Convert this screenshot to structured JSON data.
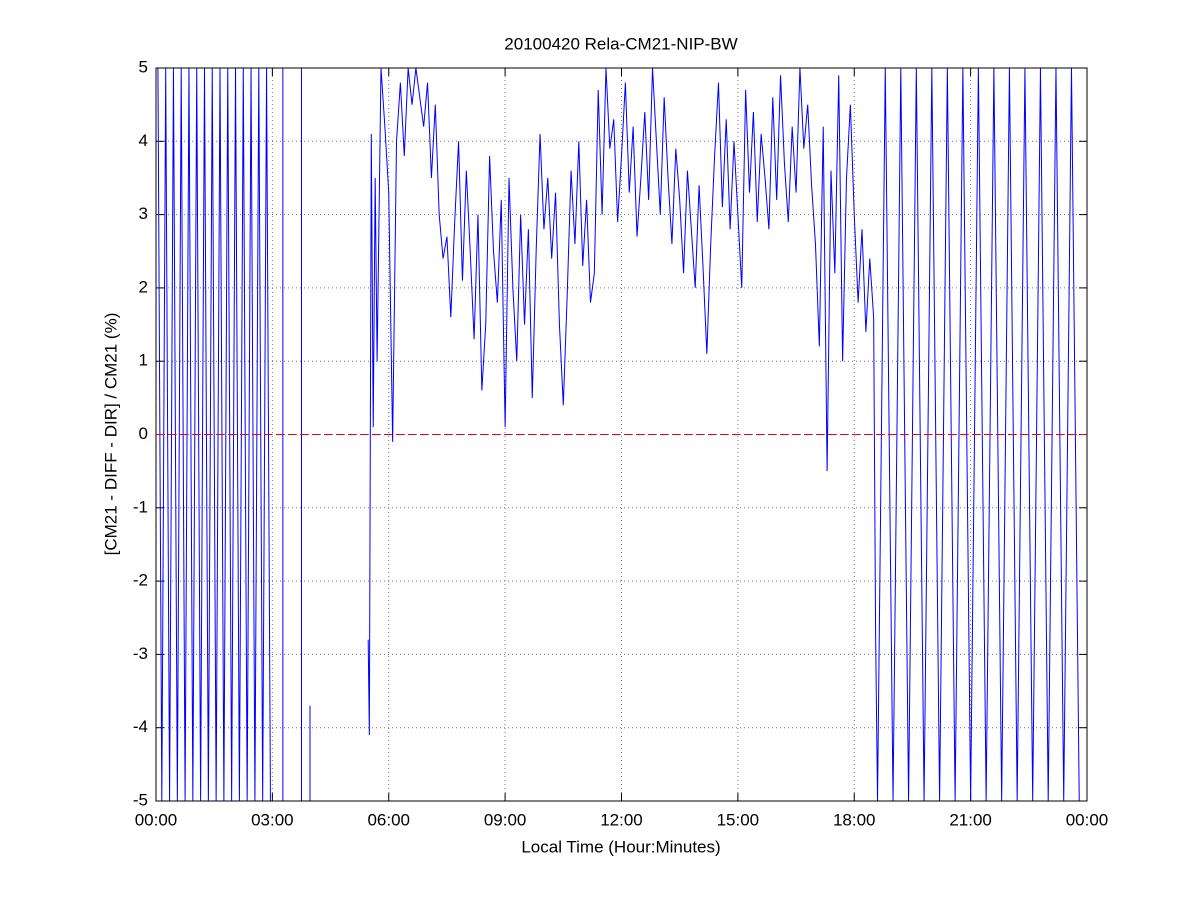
{
  "chart_data": {
    "type": "line",
    "title": "20100420 Rela-CM21-NIP-BW",
    "xlabel": "Local Time (Hour:Minutes)",
    "ylabel": "[CM21 - DIFF - DIR] / CM21 (%)",
    "xlim": [
      0,
      24
    ],
    "ylim": [
      -5,
      5
    ],
    "xticks": [
      {
        "value": 0,
        "label": "00:00"
      },
      {
        "value": 3,
        "label": "03:00"
      },
      {
        "value": 6,
        "label": "06:00"
      },
      {
        "value": 9,
        "label": "09:00"
      },
      {
        "value": 12,
        "label": "12:00"
      },
      {
        "value": 15,
        "label": "15:00"
      },
      {
        "value": 18,
        "label": "18:00"
      },
      {
        "value": 21,
        "label": "21:00"
      },
      {
        "value": 24,
        "label": "00:00"
      }
    ],
    "yticks": [
      -5,
      -4,
      -3,
      -2,
      -1,
      0,
      1,
      2,
      3,
      4,
      5
    ],
    "grid": true,
    "hlines": [
      {
        "y": 0,
        "color": "#ff0000"
      }
    ],
    "x": [
      0.05,
      0.15,
      0.25,
      0.35,
      0.45,
      0.55,
      0.65,
      0.75,
      0.85,
      0.95,
      1.05,
      1.15,
      1.25,
      1.35,
      1.45,
      1.55,
      1.65,
      1.75,
      1.85,
      1.95,
      2.05,
      2.15,
      2.25,
      2.35,
      2.45,
      2.55,
      2.65,
      2.75,
      2.85,
      2.95,
      3.1,
      3.27,
      3.27,
      3.5,
      3.75,
      3.75,
      3.85,
      3.97,
      3.97,
      4.5,
      5.47,
      5.5,
      5.55,
      5.6,
      5.65,
      5.7,
      5.8,
      5.9,
      6.0,
      6.1,
      6.2,
      6.3,
      6.4,
      6.5,
      6.6,
      6.7,
      6.8,
      6.9,
      7.0,
      7.1,
      7.2,
      7.3,
      7.4,
      7.5,
      7.6,
      7.7,
      7.8,
      7.9,
      8.0,
      8.1,
      8.2,
      8.3,
      8.4,
      8.5,
      8.6,
      8.7,
      8.8,
      8.9,
      9.0,
      9.1,
      9.2,
      9.3,
      9.4,
      9.5,
      9.6,
      9.7,
      9.8,
      9.9,
      10.0,
      10.1,
      10.2,
      10.3,
      10.4,
      10.5,
      10.6,
      10.7,
      10.8,
      10.9,
      11.0,
      11.1,
      11.2,
      11.3,
      11.4,
      11.5,
      11.6,
      11.7,
      11.8,
      11.9,
      12.0,
      12.1,
      12.2,
      12.3,
      12.4,
      12.5,
      12.6,
      12.7,
      12.8,
      12.9,
      13.0,
      13.1,
      13.2,
      13.3,
      13.4,
      13.5,
      13.6,
      13.7,
      13.8,
      13.9,
      14.0,
      14.1,
      14.2,
      14.3,
      14.4,
      14.5,
      14.6,
      14.7,
      14.8,
      14.9,
      15.0,
      15.1,
      15.2,
      15.3,
      15.4,
      15.5,
      15.6,
      15.7,
      15.8,
      15.9,
      16.0,
      16.1,
      16.2,
      16.3,
      16.4,
      16.5,
      16.6,
      16.7,
      16.8,
      16.9,
      17.0,
      17.1,
      17.2,
      17.3,
      17.4,
      17.5,
      17.6,
      17.7,
      17.8,
      17.9,
      18.0,
      18.1,
      18.2,
      18.3,
      18.4,
      18.5,
      18.55,
      18.6,
      18.8,
      19.0,
      19.2,
      19.4,
      19.6,
      19.8,
      20.0,
      20.2,
      20.4,
      20.6,
      20.8,
      21.0,
      21.2,
      21.4,
      21.6,
      21.8,
      22.0,
      22.2,
      22.4,
      22.6,
      22.8,
      23.0,
      23.2,
      23.4,
      23.6,
      23.8
    ],
    "series": [
      {
        "name": "CM21",
        "color": "#0000ff",
        "values": [
          5,
          -5,
          5,
          -5,
          5,
          -5,
          5,
          -5,
          5,
          -5,
          5,
          -5,
          5,
          -5,
          5,
          -5,
          5,
          -5,
          5,
          -5,
          5,
          -5,
          5,
          -5,
          5,
          -5,
          5,
          -5,
          5,
          -5,
          null,
          5,
          -5,
          null,
          5,
          -5,
          null,
          -3.7,
          -5,
          null,
          -2.8,
          -4.1,
          4.1,
          0.1,
          3.5,
          1.0,
          5,
          4.2,
          3.3,
          -0.1,
          4.0,
          4.8,
          3.8,
          5,
          4.5,
          5,
          4.6,
          4.2,
          4.8,
          3.5,
          4.5,
          3.0,
          2.4,
          2.7,
          1.6,
          2.9,
          4.0,
          2.1,
          3.6,
          2.5,
          1.3,
          3.0,
          0.6,
          1.5,
          3.8,
          2.5,
          1.8,
          3.2,
          0.1,
          3.5,
          2.0,
          1.0,
          3.0,
          1.5,
          2.8,
          0.5,
          2.5,
          4.1,
          2.8,
          3.5,
          2.4,
          3.3,
          1.5,
          0.4,
          1.9,
          3.6,
          2.6,
          4.0,
          2.3,
          3.2,
          1.8,
          2.2,
          4.7,
          3.0,
          5,
          3.9,
          4.3,
          2.9,
          3.8,
          4.8,
          3.3,
          4.2,
          2.7,
          3.5,
          4.4,
          3.2,
          5,
          4.0,
          3.0,
          4.6,
          3.5,
          2.6,
          3.9,
          3.2,
          2.2,
          3.6,
          2.8,
          2.0,
          3.4,
          2.3,
          1.1,
          2.6,
          3.8,
          4.8,
          3.1,
          4.3,
          2.8,
          4.0,
          3.0,
          2.0,
          4.7,
          3.3,
          4.4,
          2.9,
          4.1,
          3.5,
          2.8,
          4.6,
          3.2,
          4.9,
          3.7,
          2.9,
          4.2,
          3.3,
          5,
          3.9,
          4.5,
          3.4,
          2.6,
          1.2,
          4.2,
          -0.5,
          3.6,
          2.2,
          4.9,
          1.0,
          3.5,
          4.5,
          3.0,
          1.8,
          2.8,
          1.4,
          2.4,
          1.6,
          -2.7,
          -5,
          5,
          -5,
          5,
          -5,
          5,
          -5,
          5,
          -5,
          5,
          -5,
          5,
          -5,
          5,
          -5,
          5,
          -5,
          5,
          -5,
          5,
          -5,
          5,
          -5,
          5,
          -5,
          5,
          -5
        ]
      }
    ]
  }
}
